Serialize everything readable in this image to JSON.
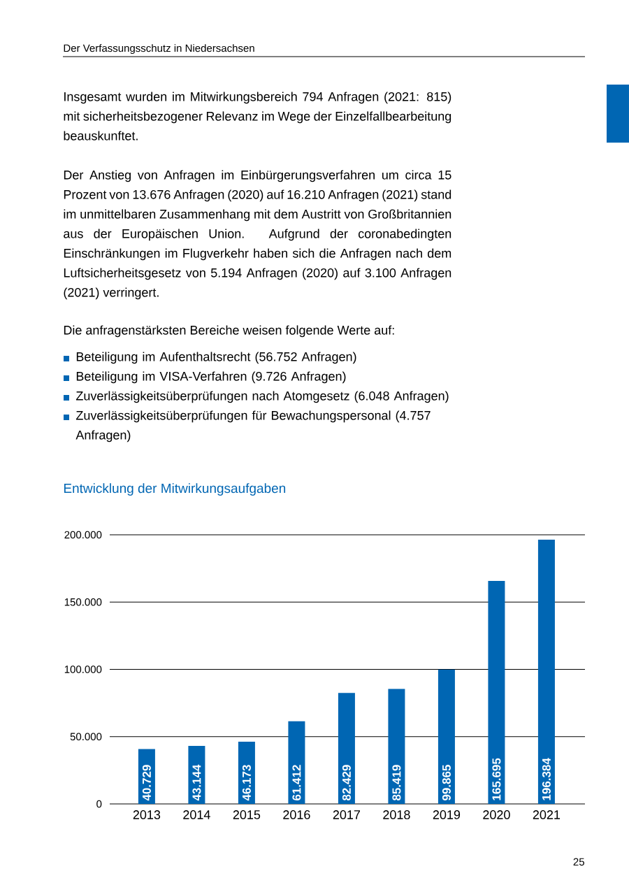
{
  "chart_data": {
    "type": "bar",
    "title": "Entwicklung der Mitwirkungsaufgaben",
    "categories": [
      "2013",
      "2014",
      "2015",
      "2016",
      "2017",
      "2018",
      "2019",
      "2020",
      "2021"
    ],
    "values": [
      40729,
      43144,
      46173,
      61412,
      82429,
      85419,
      99865,
      165695,
      196384
    ],
    "value_labels": [
      "40.729",
      "43.144",
      "46.173",
      "61.412",
      "82.429",
      "85.419",
      "99.865",
      "165.695",
      "196.384"
    ],
    "color": "#0066b3",
    "ylim": [
      0,
      200000
    ],
    "yticks": [
      {
        "value": 0,
        "label": "0"
      },
      {
        "value": 50000,
        "label": "50.000"
      },
      {
        "value": 100000,
        "label": "100.000"
      },
      {
        "value": 150000,
        "label": "150.000"
      },
      {
        "value": 200000,
        "label": "200.000"
      }
    ],
    "grid": "y",
    "annotations": [
      "Der Verfassungsschutz in Niedersachsen",
      "Insgesamt wurden im Mitwirkungsbereich 794 Anfragen (2021: 815) mit sicherheitsbezogener Relevanz im Wege der Einzelfallbearbeitung beauskunftet.",
      "Der Anstieg von Anfragen im Einbürgerungsverfahren um circa 15 Prozent von 13.676 Anfragen (2020) auf 16.210 Anfragen (2021) stand im unmittelbaren Zusammenhang mit dem Austritt von Großbritannien aus der Europäischen Union. Aufgrund der coronabedingten Einschränkungen im Flugverkehr haben sich die Anfragen nach dem Luftsicherheitsgesetz von 5.194 Anfragen (2020) auf 3.100 Anfragen (2021) verringert.",
      "Die anfragenstärksten Bereiche weisen folgende Werte auf:",
      "Beteiligung im Aufenthaltsrecht (56.752 Anfragen)",
      "Beteiligung im VISA-Verfahren (9.726 Anfragen)",
      "Zuverlässigkeitsüberprüfungen nach Atomgesetz (6.048 Anfragen)",
      "Zuverlässigkeitsüberprüfungen für Bewachungspersonal (4.757 Anfragen)",
      "25"
    ]
  }
}
